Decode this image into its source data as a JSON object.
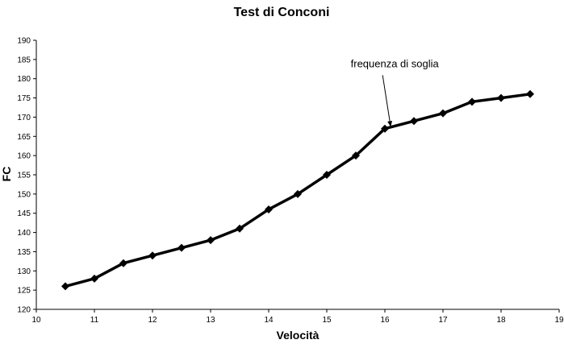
{
  "chart_data": {
    "type": "line",
    "title": "Test di Conconi",
    "xlabel": "Velocità",
    "ylabel": "FC",
    "xlim": [
      10,
      19
    ],
    "ylim": [
      120,
      190
    ],
    "xticks": [
      10,
      11,
      12,
      13,
      14,
      15,
      16,
      17,
      18,
      19
    ],
    "yticks": [
      120,
      125,
      130,
      135,
      140,
      145,
      150,
      155,
      160,
      165,
      170,
      175,
      180,
      185,
      190
    ],
    "grid": false,
    "legend": "none",
    "series": [
      {
        "color": "#000000",
        "marker": "diamond",
        "x": [
          10.5,
          11,
          11.5,
          12,
          12.5,
          13,
          13.5,
          14,
          14.5,
          15,
          15.5,
          16,
          16.5,
          17,
          17.5,
          18,
          18.5
        ],
        "y": [
          126,
          128,
          132,
          134,
          136,
          138,
          141,
          146,
          150,
          155,
          160,
          167,
          169,
          171,
          174,
          175,
          176
        ]
      }
    ],
    "annotations": [
      {
        "text": "frequenza di soglia",
        "x": 16.1,
        "y": 167.5
      }
    ]
  }
}
